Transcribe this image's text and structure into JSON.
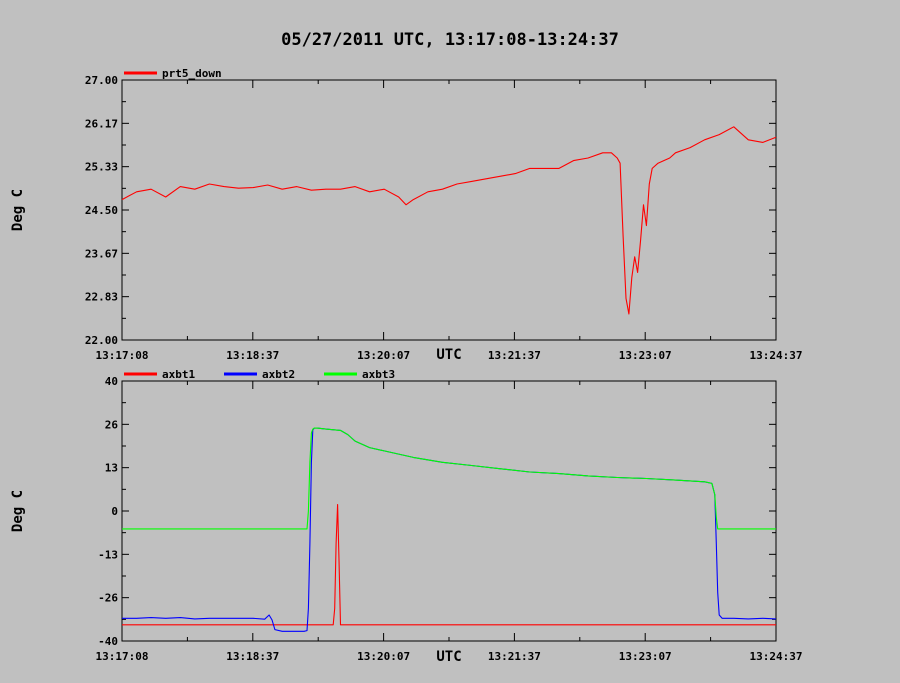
{
  "title": "05/27/2011  UTC, 13:17:08-13:24:37",
  "chart_data": [
    {
      "type": "line",
      "xlabel": "UTC",
      "ylabel": "Deg C",
      "x_ticks": [
        "13:17:08",
        "13:18:37",
        "13:20:07",
        "13:21:37",
        "13:23:07",
        "13:24:37"
      ],
      "x_range_seconds": [
        0,
        449
      ],
      "y_ticks": [
        "27.00",
        "26.17",
        "25.33",
        "24.50",
        "23.67",
        "22.83",
        "22.00"
      ],
      "ylim": [
        22.0,
        27.0
      ],
      "legend_position": "top-left",
      "series": [
        {
          "name": "prt5_down",
          "color": "#ff0000",
          "x": [
            0,
            10,
            20,
            30,
            40,
            50,
            60,
            70,
            80,
            90,
            100,
            110,
            120,
            130,
            140,
            150,
            160,
            170,
            180,
            190,
            195,
            200,
            210,
            220,
            230,
            240,
            250,
            260,
            270,
            280,
            290,
            300,
            310,
            320,
            330,
            336,
            340,
            342,
            344,
            346,
            348,
            350,
            352,
            354,
            356,
            358,
            360,
            362,
            364,
            368,
            372,
            376,
            380,
            390,
            400,
            410,
            420,
            430,
            440,
            449
          ],
          "y": [
            24.7,
            24.85,
            24.9,
            24.75,
            24.95,
            24.9,
            25.0,
            24.95,
            24.92,
            24.93,
            24.98,
            24.9,
            24.95,
            24.88,
            24.9,
            24.9,
            24.95,
            24.85,
            24.9,
            24.75,
            24.6,
            24.7,
            24.85,
            24.9,
            25.0,
            25.05,
            25.1,
            25.15,
            25.2,
            25.3,
            25.3,
            25.3,
            25.45,
            25.5,
            25.6,
            25.6,
            25.5,
            25.4,
            24.0,
            22.8,
            22.5,
            23.2,
            23.6,
            23.3,
            23.9,
            24.6,
            24.2,
            25.0,
            25.3,
            25.4,
            25.45,
            25.5,
            25.6,
            25.7,
            25.85,
            25.95,
            26.1,
            25.85,
            25.8,
            25.9
          ]
        }
      ]
    },
    {
      "type": "line",
      "xlabel": "UTC",
      "ylabel": "Deg C",
      "x_ticks": [
        "13:17:08",
        "13:18:37",
        "13:20:07",
        "13:21:37",
        "13:23:07",
        "13:24:37"
      ],
      "x_range_seconds": [
        0,
        449
      ],
      "y_ticks": [
        "40",
        "26",
        "13",
        "0",
        "-13",
        "-26",
        "-40"
      ],
      "ylim": [
        -40,
        40
      ],
      "legend_position": "top-left",
      "series": [
        {
          "name": "axbt1",
          "color": "#ff0000",
          "x": [
            0,
            144,
            145,
            146,
            147,
            148,
            149,
            150,
            151,
            152,
            449
          ],
          "y": [
            -35,
            -35,
            -35,
            -30,
            -10,
            2,
            -15,
            -35,
            -35,
            -35,
            -35
          ]
        },
        {
          "name": "axbt2",
          "color": "#0000ff",
          "x": [
            0,
            10,
            20,
            30,
            40,
            50,
            60,
            70,
            80,
            90,
            98,
            101,
            103,
            105,
            110,
            120,
            125,
            127,
            128,
            129,
            130,
            131,
            132,
            134,
            140,
            150,
            155,
            160,
            170,
            180,
            190,
            200,
            220,
            240,
            260,
            280,
            300,
            320,
            340,
            360,
            380,
            400,
            405,
            407,
            408,
            409,
            410,
            412,
            420,
            430,
            440,
            449
          ],
          "y": [
            -33,
            -33,
            -32.8,
            -33,
            -32.8,
            -33.2,
            -33,
            -33,
            -33,
            -33,
            -33.3,
            -32,
            -33.5,
            -36.5,
            -37,
            -37,
            -37,
            -36.8,
            -30,
            -10,
            15,
            25,
            25.5,
            25.5,
            25.2,
            24.8,
            23.5,
            21.5,
            19.5,
            18.5,
            17.5,
            16.5,
            15,
            14,
            13,
            12,
            11.5,
            10.8,
            10.3,
            10,
            9.5,
            9,
            8.5,
            5,
            -10,
            -25,
            -32,
            -33,
            -33,
            -33.2,
            -33,
            -33.2
          ]
        },
        {
          "name": "axbt3",
          "color": "#00ff00",
          "x": [
            0,
            100,
            127,
            128,
            129,
            130,
            131,
            132,
            134,
            140,
            150,
            155,
            160,
            170,
            180,
            190,
            200,
            220,
            240,
            260,
            280,
            300,
            320,
            340,
            360,
            380,
            400,
            405,
            407,
            408,
            409,
            410,
            412,
            420,
            449
          ],
          "y": [
            -5.5,
            -5.5,
            -5.5,
            0,
            15,
            24,
            25.2,
            25.5,
            25.5,
            25.2,
            24.8,
            23.5,
            21.5,
            19.5,
            18.5,
            17.5,
            16.5,
            15,
            14,
            13,
            12,
            11.5,
            10.8,
            10.3,
            10,
            9.5,
            9,
            8.5,
            5,
            -2,
            -5.5,
            -5.5,
            -5.5,
            -5.5,
            -5.5
          ]
        }
      ]
    }
  ]
}
